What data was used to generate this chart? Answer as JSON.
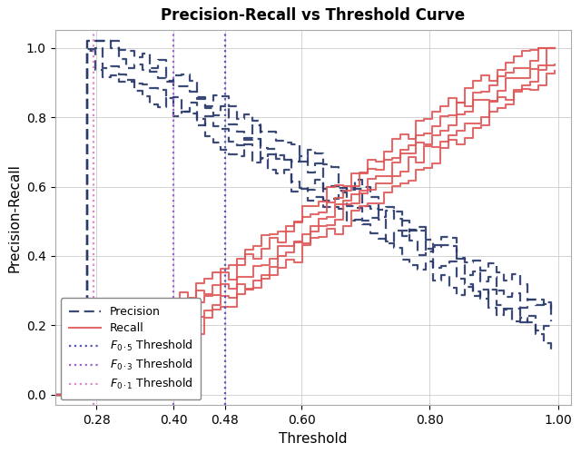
{
  "title": "Precision-Recall vs Threshold Curve",
  "xlabel": "Threshold",
  "ylabel": "Precision-Recall",
  "xlim": [
    0.215,
    1.02
  ],
  "ylim": [
    -0.03,
    1.05
  ],
  "xticks": [
    0.28,
    0.4,
    0.48,
    0.6,
    0.8,
    1.0
  ],
  "yticks": [
    0.0,
    0.2,
    0.4,
    0.6,
    0.8,
    1.0
  ],
  "precision_color": "#2b3a6b",
  "recall_color": "#e05555",
  "vline_f05_x": 0.48,
  "vline_f03_x": 0.4,
  "vline_f01_x": 0.275,
  "vline_f05_color": "#5555bb",
  "vline_f03_color": "#9966cc",
  "vline_f01_color": "#dd88cc",
  "precision_offsets": [
    0.0,
    0.04,
    -0.03,
    0.07
  ],
  "recall_offsets": [
    0.0,
    0.03,
    -0.03,
    0.06,
    -0.06
  ]
}
